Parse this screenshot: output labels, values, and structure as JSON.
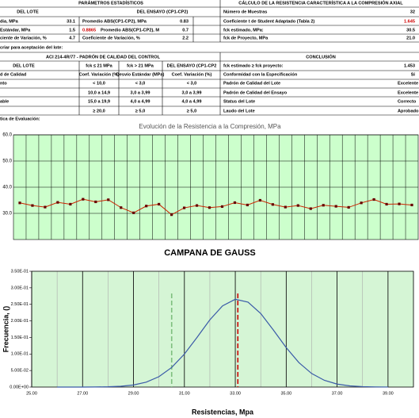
{
  "sheet": {
    "rows": [
      [
        "PARÁMETROS ESTADÍSTICOS",
        "CÁLCULO DE LA RESISTENCIA CARACTERÍSTICA A LA COMPRESIÓN AXIAL"
      ],
      [
        "DEL LOTE",
        "DEL ENSAYO (CP1-CP2)",
        "Número de Muestras",
        "32"
      ],
      [
        "dia, MPa",
        "33.1",
        "Promedio ABS(CP1-CP2), MPa",
        "0.83",
        "Coeficiente t de Student Adaptado (Tabla 2)",
        "1.645"
      ],
      [
        "Estándar, MPa",
        "1.5",
        "0.8865",
        "Promedio ABS(CP1-CP2), M",
        "0.7",
        "fck estimado, MPa:",
        "30.5"
      ],
      [
        "ciente de Variación, %",
        "4.7",
        "Coeficiente de Variación, %",
        "2.2",
        "fck de Proyecto, MPa",
        "21.0"
      ],
      [
        "criar para aceptación del lote:"
      ],
      [
        "ACI 214-4R/77 - PADRÓN DE CALIDAD DEL CONTROL",
        "CONCLUSIÓN"
      ],
      [
        "DEL LOTE",
        "fck ≤ 21 MPa",
        "fck > 21 MPa",
        "DEL ENSAYO (CP1-CP2",
        "fck estimado ≥ fck proyecto:",
        "1.453"
      ],
      [
        "d de Calidad",
        "Coef. Variación (%)",
        "Desvío Estándar (MPa)",
        "Coef. Variación (%)",
        "Conformidad con la Especificación",
        "Sí"
      ],
      [
        "nto",
        "< 10,0",
        "< 3,0",
        "< 3,0",
        "Padrón de Calidad del Lote",
        "Excelente"
      ],
      [
        "10,0 a 14,9",
        "3,0 a 3,99",
        "3,0 a 3,99",
        "Padrón de Calidad del Ensayo",
        "Excelente"
      ],
      [
        "able",
        "15,0 a 19,9",
        "4,0 a 4,99",
        "4,0 a 4,99",
        "Status del Lote",
        "Correcto"
      ],
      [
        "≥ 20,0",
        "≥ 5,0",
        "≥ 5,0",
        "Laudo del Lote",
        "Aprobado"
      ],
      [
        "tica de Evaluación:"
      ]
    ]
  },
  "chart_data": [
    {
      "type": "line",
      "title": "Evolución de la Resistencia a la Compresión, MPa",
      "values": [
        34.0,
        33.0,
        32.4,
        34.2,
        33.5,
        35.4,
        34.4,
        35.2,
        32.2,
        30.2,
        32.8,
        33.5,
        29.5,
        32.1,
        33.0,
        32.2,
        32.6,
        34.1,
        33.2,
        35.0,
        33.4,
        32.4,
        33.0,
        31.8,
        33.1,
        32.7,
        32.3,
        34.0,
        35.3,
        33.5,
        33.6,
        33.2
      ],
      "color": "#cc2200",
      "marker_color": "#660000",
      "ylim": [
        20,
        60
      ],
      "yticks": [
        {
          "value": 30,
          "label": "30.0"
        },
        {
          "value": 40,
          "label": "40.0"
        },
        {
          "value": 50,
          "label": "50.0"
        },
        {
          "value": 60,
          "label": "60.0"
        }
      ],
      "grid": true
    },
    {
      "type": "curve",
      "title": "CAMPANA DE GAUSS",
      "xlabel": "Resistencias, Mpa",
      "ylabel": "Frecuencia, ()",
      "x": [
        26,
        26.5,
        27,
        27.5,
        28,
        28.5,
        29,
        29.5,
        30,
        30.5,
        31,
        31.5,
        32,
        32.5,
        33,
        33.5,
        34,
        34.5,
        35,
        35.5,
        36,
        36.5,
        37,
        37.5,
        38,
        38.5,
        39
      ],
      "values": [
        3.6e-06,
        1.66e-05,
        6.81e-05,
        0.00025,
        0.00082,
        0.00241,
        0.00635,
        0.0149,
        0.0314,
        0.0592,
        0.0998,
        0.1505,
        0.2032,
        0.2455,
        0.2654,
        0.2567,
        0.2222,
        0.172,
        0.1192,
        0.0739,
        0.041,
        0.0204,
        0.009,
        0.0036,
        0.0013,
        0.0004,
        0.0001
      ],
      "color": "#3a5aa8",
      "reference_lines": [
        {
          "value": 30.5,
          "color": "#7fbf7f"
        },
        {
          "value": 33.1,
          "color": "#cc0000"
        }
      ],
      "xlim": [
        25,
        40
      ],
      "ylim": [
        0,
        0.35
      ],
      "xticks": [
        {
          "value": 25,
          "label": "25.00"
        },
        {
          "value": 27,
          "label": "27.00"
        },
        {
          "value": 29,
          "label": "29.00"
        },
        {
          "value": 31,
          "label": "31.00"
        },
        {
          "value": 33,
          "label": "33.00"
        },
        {
          "value": 35,
          "label": "35.00"
        },
        {
          "value": 37,
          "label": "37.00"
        },
        {
          "value": 39,
          "label": "39.00"
        }
      ],
      "yticks": [
        {
          "value": 0,
          "label": "0.00E+00"
        },
        {
          "value": 0.05,
          "label": "5.00E-02"
        },
        {
          "value": 0.1,
          "label": "1.00E-01"
        },
        {
          "value": 0.15,
          "label": "1.50E-01"
        },
        {
          "value": 0.2,
          "label": "2.00E-01"
        },
        {
          "value": 0.25,
          "label": "2.50E-01"
        },
        {
          "value": 0.3,
          "label": "3.00E-01"
        },
        {
          "value": 0.35,
          "label": "3.50E-01"
        }
      ],
      "grid": true
    }
  ]
}
